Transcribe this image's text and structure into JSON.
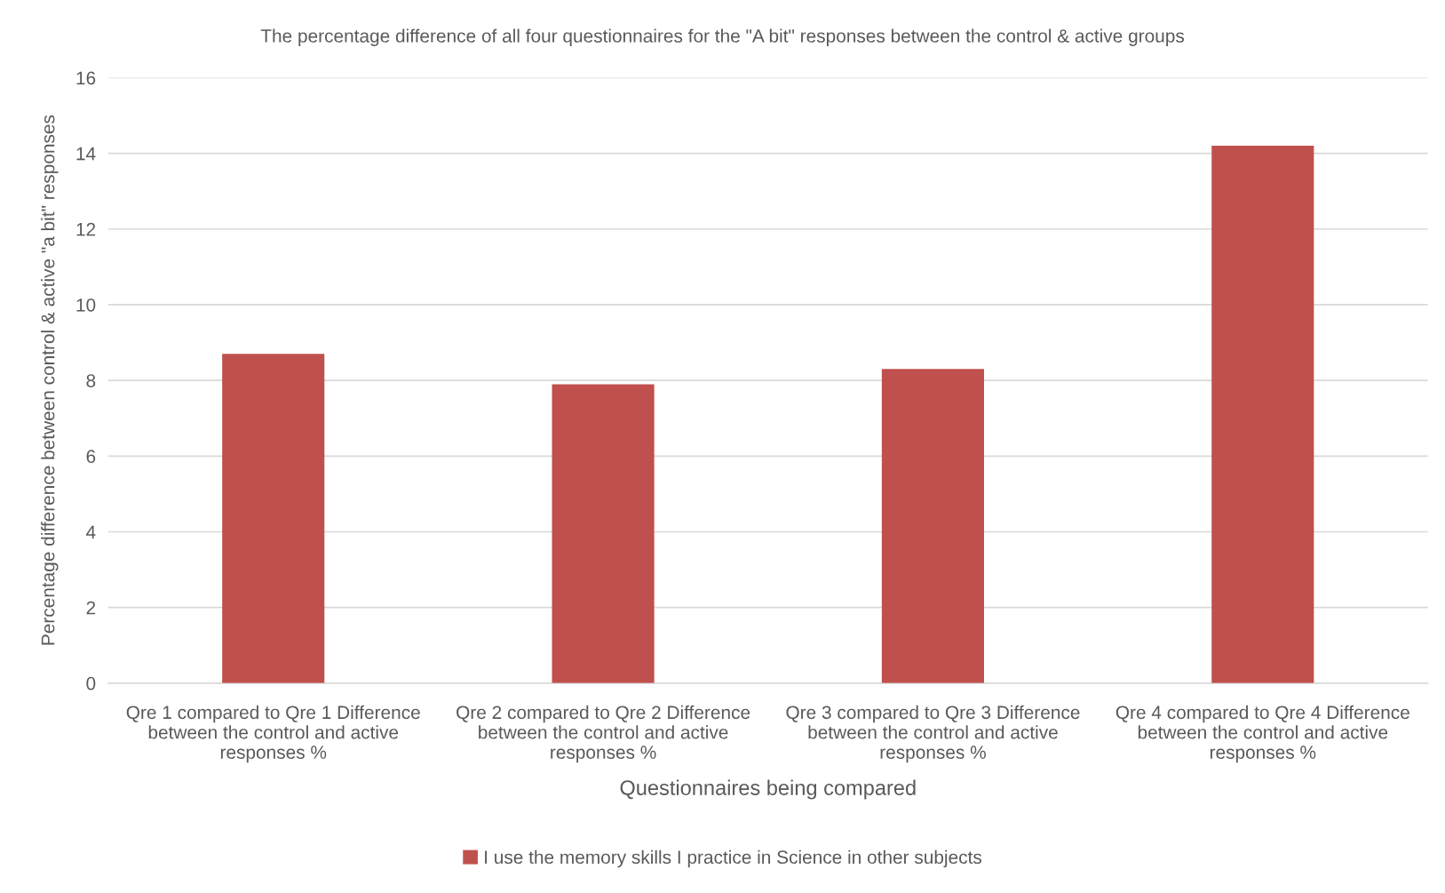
{
  "chart_data": {
    "type": "bar",
    "title": "The percentage difference of all four questionnaires for the \"A bit\" responses between the control & active groups",
    "xlabel": "Questionnaires being compared",
    "ylabel": "Percentage difference between control & active \"a bit\" responses",
    "categories": [
      "Qre 1 compared to Qre 1 Difference between the control and active responses %",
      "Qre 2 compared to Qre 2 Difference between the control and active responses %",
      "Qre 3 compared to Qre 3 Difference between the control and active responses %",
      "Qre 4 compared to Qre 4 Difference between the control and active responses %"
    ],
    "series": [
      {
        "name": "I use the memory skills I practice in Science in other subjects",
        "color": "#c0504d",
        "values": [
          8.7,
          7.9,
          8.3,
          14.2
        ]
      }
    ],
    "ylim": [
      0,
      16
    ],
    "yticks": [
      0,
      2,
      4,
      6,
      8,
      10,
      12,
      14,
      16
    ],
    "grid": "y",
    "legend": "bottom"
  }
}
